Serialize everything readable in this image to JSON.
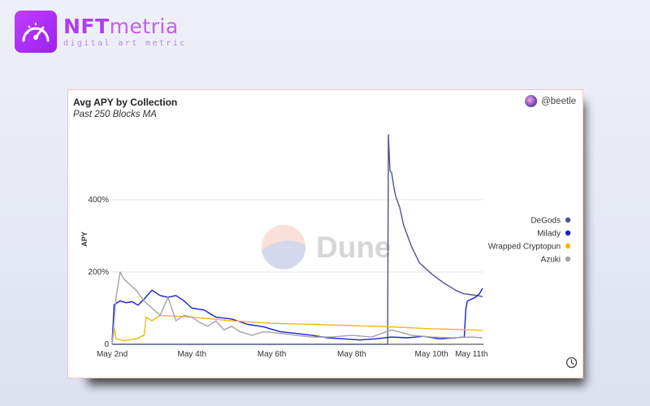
{
  "brand": {
    "name_bold": "NFT",
    "name_light": "metria",
    "tagline": "digital art metric"
  },
  "card": {
    "author": "@beetle",
    "watermark": "Dune"
  },
  "chart_data": {
    "type": "line",
    "title": "Avg APY by Collection",
    "subtitle": "Past 250 Blocks MA",
    "xlabel": "",
    "ylabel": "APY",
    "x_ticks": [
      "May 2nd",
      "May 4th",
      "May 6th",
      "May 8th",
      "May 10th",
      "May 11th"
    ],
    "x_tick_values": [
      0,
      2,
      4,
      6,
      8,
      9
    ],
    "x_unit": "days since May 2nd",
    "xlim": [
      0,
      9.3
    ],
    "y_ticks": [
      "0",
      "200%",
      "400%"
    ],
    "y_tick_values": [
      0,
      200,
      400
    ],
    "ylim": [
      0,
      600
    ],
    "grid": true,
    "legend_position": "right",
    "series": [
      {
        "name": "DeGods",
        "color": "#4e5393",
        "x": [
          0,
          6.9,
          6.92,
          6.96,
          7.0,
          7.05,
          7.1,
          7.2,
          7.3,
          7.5,
          7.7,
          8.0,
          8.3,
          8.6,
          8.8,
          9.0,
          9.15,
          9.28
        ],
        "y": [
          0,
          0,
          580,
          480,
          475,
          440,
          410,
          380,
          330,
          270,
          225,
          195,
          170,
          150,
          140,
          137,
          135,
          132
        ]
      },
      {
        "name": "Milady",
        "color": "#1a20d6",
        "x": [
          0,
          0.05,
          0.2,
          0.35,
          0.5,
          0.65,
          0.8,
          1.0,
          1.2,
          1.4,
          1.6,
          1.8,
          2.0,
          2.3,
          2.6,
          3.0,
          3.4,
          3.8,
          4.2,
          4.6,
          5.0,
          5.4,
          5.8,
          6.2,
          6.6,
          7.0,
          7.4,
          7.8,
          8.2,
          8.6,
          8.82,
          8.86,
          8.9,
          9.0,
          9.1,
          9.2,
          9.28
        ],
        "y": [
          5,
          110,
          120,
          115,
          118,
          108,
          125,
          150,
          135,
          130,
          135,
          120,
          100,
          95,
          75,
          70,
          55,
          48,
          35,
          30,
          25,
          18,
          15,
          12,
          15,
          20,
          18,
          22,
          15,
          18,
          20,
          100,
          120,
          125,
          130,
          140,
          155
        ]
      },
      {
        "name": "Wrapped Cryptopunks",
        "color": "#f5b70e",
        "x": [
          0,
          0.05,
          0.1,
          0.3,
          0.6,
          0.8,
          0.85,
          1.0,
          1.2,
          1.6,
          2.0,
          3.0,
          4.0,
          5.0,
          6.0,
          7.0,
          8.0,
          9.0,
          9.28
        ],
        "y": [
          0,
          45,
          15,
          10,
          15,
          25,
          75,
          65,
          80,
          78,
          75,
          65,
          58,
          55,
          52,
          48,
          43,
          40,
          38
        ]
      },
      {
        "name": "Azuki",
        "color": "#a3a3a3",
        "x": [
          0,
          0.1,
          0.2,
          0.3,
          0.45,
          0.6,
          0.8,
          1.0,
          1.2,
          1.4,
          1.6,
          1.8,
          2.0,
          2.2,
          2.4,
          2.6,
          2.8,
          3.0,
          3.2,
          3.5,
          3.8,
          4.2,
          4.6,
          5.0,
          5.5,
          6.0,
          6.5,
          7.0,
          7.5,
          8.0,
          8.5,
          9.0,
          9.28
        ],
        "y": [
          0,
          130,
          200,
          180,
          165,
          150,
          120,
          100,
          80,
          130,
          65,
          80,
          75,
          60,
          50,
          65,
          40,
          50,
          35,
          25,
          35,
          30,
          25,
          20,
          20,
          25,
          20,
          40,
          25,
          20,
          18,
          20,
          18
        ]
      }
    ]
  }
}
